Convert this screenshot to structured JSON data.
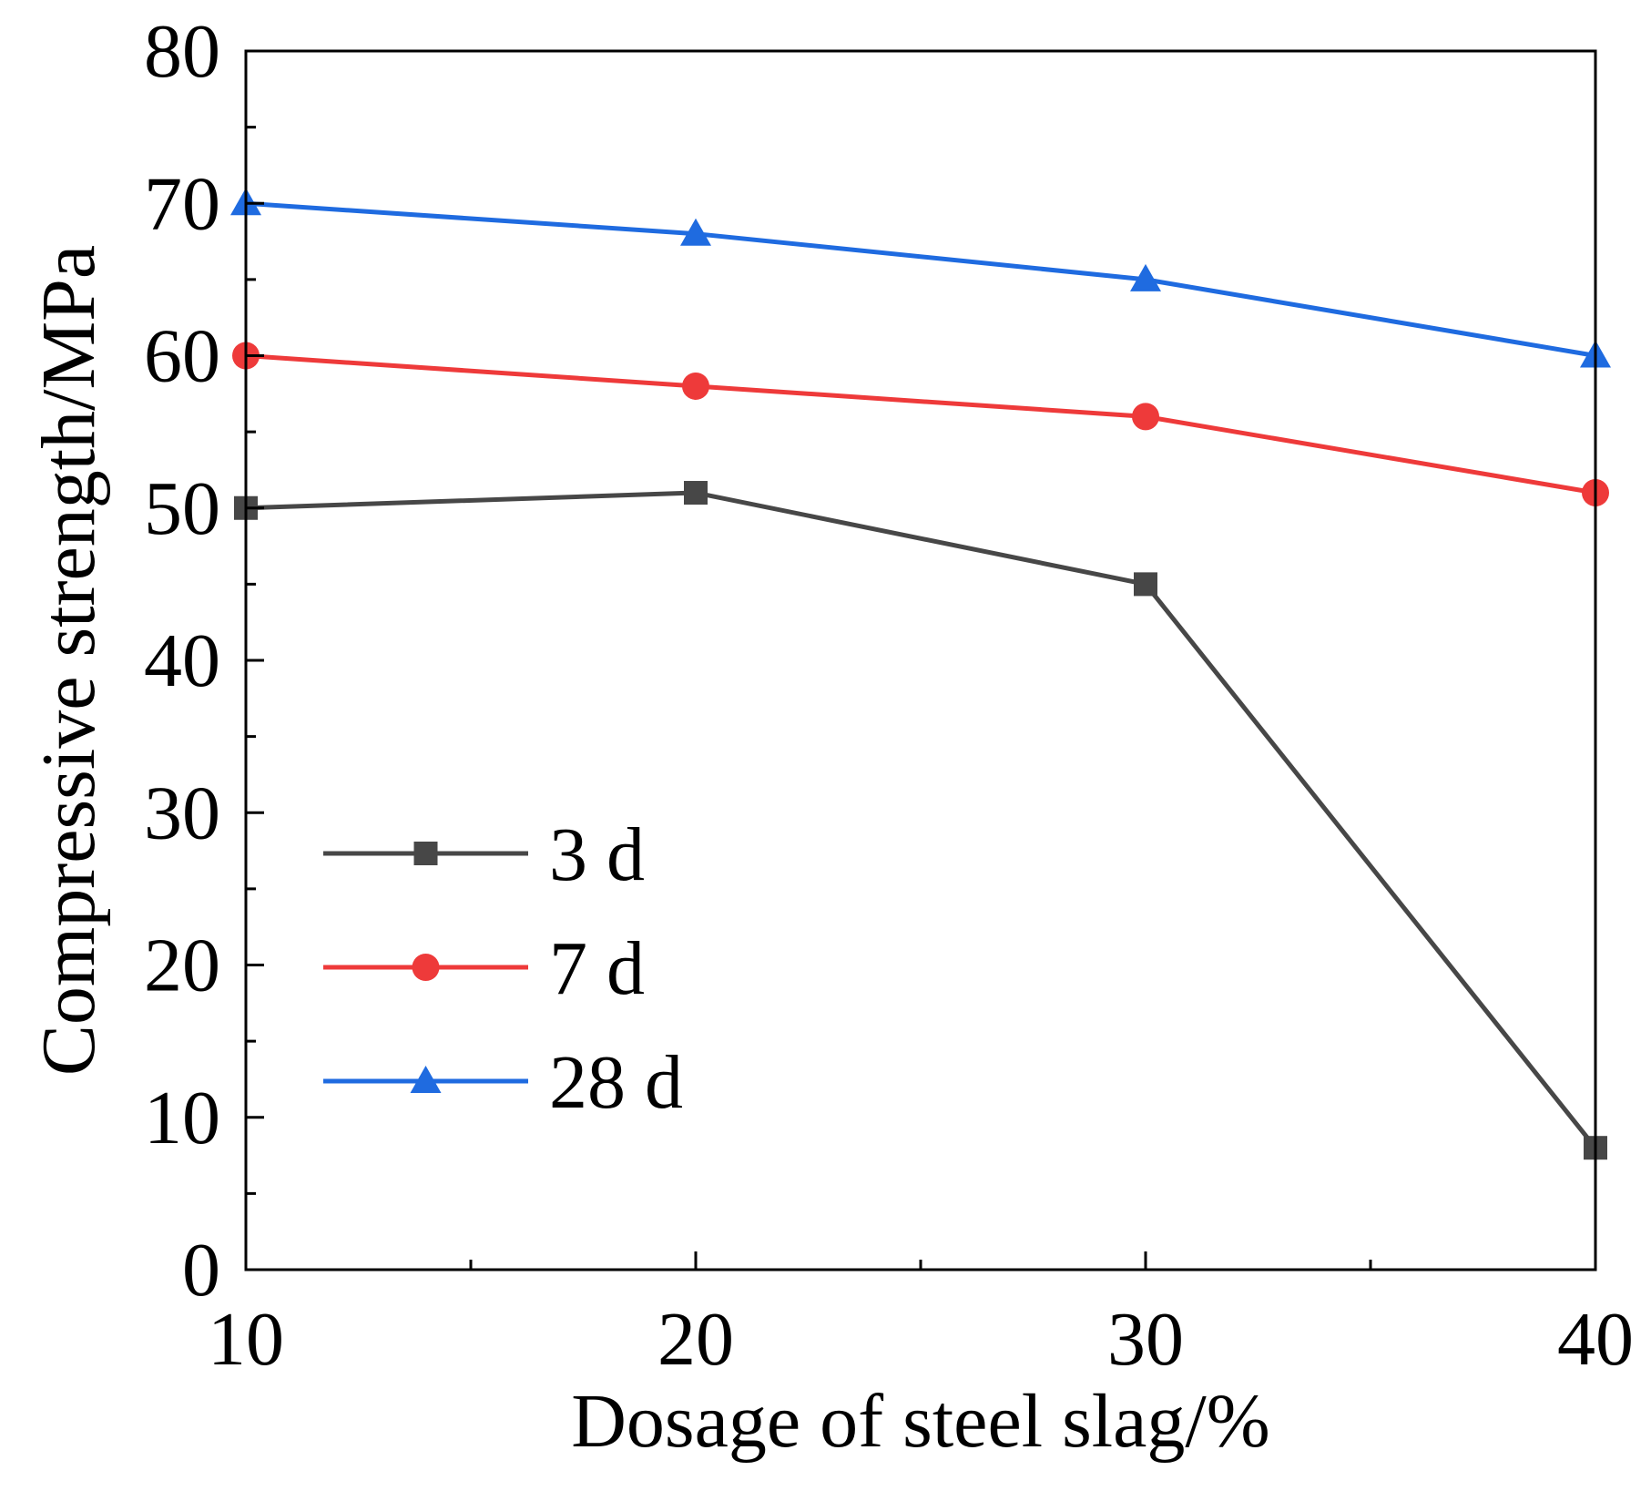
{
  "chart_data": {
    "type": "line",
    "xlabel": "Dosage of steel slag/%",
    "ylabel": "Compressive strength/MPa",
    "x": [
      10,
      20,
      30,
      40
    ],
    "xlim": [
      10,
      40
    ],
    "ylim": [
      0,
      80
    ],
    "xticks": [
      "10",
      "20",
      "30",
      "40"
    ],
    "yticks": [
      "0",
      "10",
      "20",
      "30",
      "40",
      "50",
      "60",
      "70",
      "80"
    ],
    "grid": false,
    "legend_position": "bottom-left",
    "series": [
      {
        "name": "3 d",
        "values": [
          50,
          51,
          45,
          8
        ],
        "color": "#474747",
        "marker": "square"
      },
      {
        "name": "7 d",
        "values": [
          60,
          58,
          56,
          51
        ],
        "color": "#ee3a3a",
        "marker": "circle"
      },
      {
        "name": "28 d",
        "values": [
          70,
          68,
          65,
          60
        ],
        "color": "#1f6be0",
        "marker": "triangle"
      }
    ]
  }
}
